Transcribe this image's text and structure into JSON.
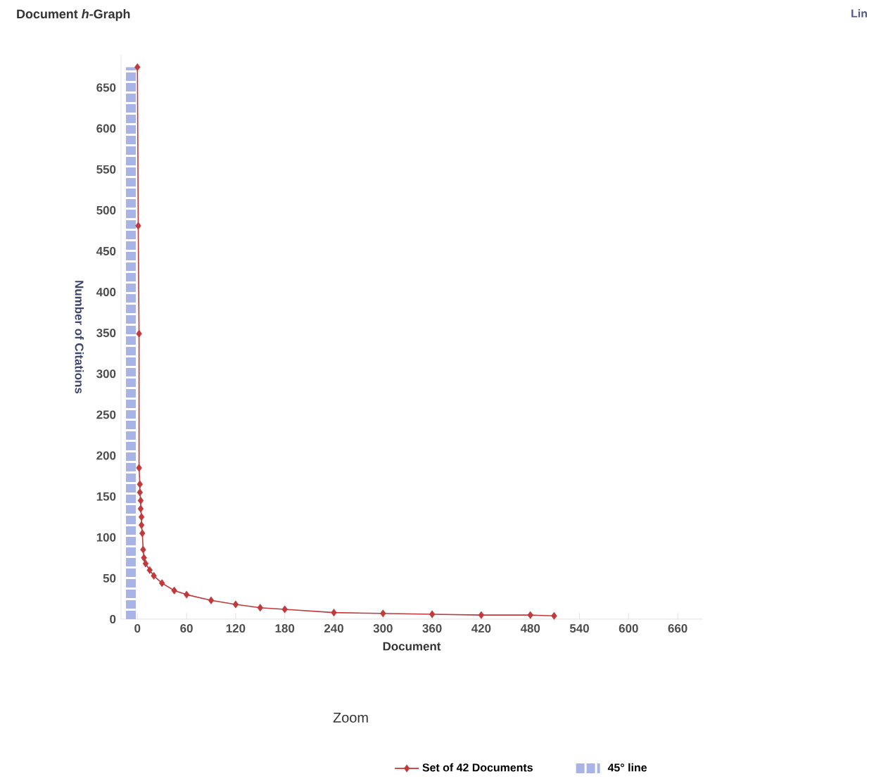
{
  "chart_data": {
    "type": "line",
    "title": "Document *h*-Graph",
    "xlabel": "Document",
    "ylabel": "Number of Citations",
    "annotations": [
      "Lin",
      "Zoom"
    ],
    "xlim": [
      -20,
      690
    ],
    "ylim": [
      0,
      690
    ],
    "xticks": [
      0,
      60,
      120,
      180,
      240,
      300,
      360,
      420,
      480,
      540,
      600,
      660
    ],
    "yticks": [
      0,
      50,
      100,
      150,
      200,
      250,
      300,
      350,
      400,
      450,
      500,
      550,
      600,
      650
    ],
    "marker": "diamond",
    "legend": "bottom",
    "grid": false,
    "series": [
      {
        "name": "Set of 42 Documents",
        "color": "#c0393b",
        "x": [
          0,
          1,
          2,
          2,
          3,
          3,
          4,
          4,
          5,
          5,
          6,
          7,
          8,
          10,
          15,
          20,
          30,
          45,
          60,
          90,
          120,
          150,
          180,
          240,
          300,
          360,
          420,
          480,
          509
        ],
        "values": [
          675,
          481,
          349,
          185,
          165,
          155,
          145,
          135,
          125,
          115,
          105,
          85,
          75,
          68,
          60,
          53,
          44,
          35,
          30,
          23,
          18,
          14,
          12,
          8,
          7,
          6,
          5,
          5,
          4
        ]
      },
      {
        "name": "45° line",
        "color": "#a9b4e6",
        "marker": "none",
        "line_style": "dashed",
        "x": [
          -8,
          -8
        ],
        "values": [
          0,
          675
        ]
      }
    ]
  }
}
